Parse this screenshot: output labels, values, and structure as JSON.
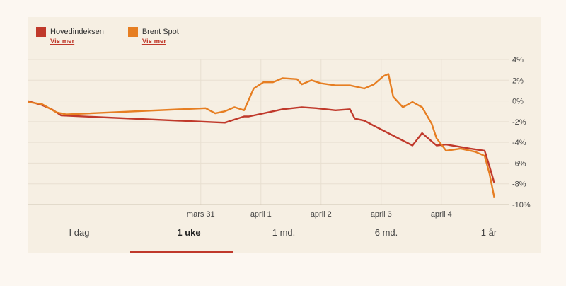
{
  "legend": {
    "items": [
      {
        "name": "Hovedindeksen",
        "link": "Vis mer",
        "color": "#c0392b"
      },
      {
        "name": "Brent Spot",
        "link": "Vis mer",
        "color": "#e67e22"
      }
    ]
  },
  "ranges": {
    "items": [
      "I dag",
      "1 uke",
      "1 md.",
      "6 md.",
      "1 år"
    ],
    "selected": 1
  },
  "chart_data": {
    "type": "line",
    "x_ticks": [
      "mars 31",
      "april 1",
      "april 2",
      "april 3",
      "april 4"
    ],
    "y_ticks": [
      "4%",
      "2%",
      "0%",
      "-2%",
      "-4%",
      "-6%",
      "-8%",
      "-10%"
    ],
    "ylim": [
      -10,
      4
    ],
    "xlim": [
      0,
      100
    ],
    "series": [
      {
        "name": "Hovedindeksen",
        "color": "#c0392b",
        "points": [
          [
            0,
            0
          ],
          [
            3,
            -0.4
          ],
          [
            5,
            -0.8
          ],
          [
            7,
            -1.4
          ],
          [
            41,
            -2.1
          ],
          [
            43,
            -1.8
          ],
          [
            45,
            -1.5
          ],
          [
            46,
            -1.5
          ],
          [
            50,
            -1.1
          ],
          [
            53,
            -0.8
          ],
          [
            57,
            -0.6
          ],
          [
            60,
            -0.7
          ],
          [
            64,
            -0.9
          ],
          [
            67,
            -0.8
          ],
          [
            68,
            -1.7
          ],
          [
            70,
            -1.9
          ],
          [
            72,
            -2.4
          ],
          [
            80,
            -4.3
          ],
          [
            82,
            -3.1
          ],
          [
            85,
            -4.3
          ],
          [
            87,
            -4.2
          ],
          [
            92,
            -4.6
          ],
          [
            95,
            -4.8
          ],
          [
            96,
            -6.3
          ],
          [
            97,
            -7.9
          ]
        ]
      },
      {
        "name": "Brent Spot",
        "color": "#e67e22",
        "points": [
          [
            0,
            -0.1
          ],
          [
            3,
            -0.3
          ],
          [
            6,
            -1.1
          ],
          [
            8,
            -1.3
          ],
          [
            37,
            -0.7
          ],
          [
            39,
            -1.2
          ],
          [
            41,
            -1.0
          ],
          [
            43,
            -0.6
          ],
          [
            45,
            -0.9
          ],
          [
            47,
            1.2
          ],
          [
            49,
            1.8
          ],
          [
            51,
            1.8
          ],
          [
            53,
            2.2
          ],
          [
            56,
            2.1
          ],
          [
            57,
            1.6
          ],
          [
            59,
            2.0
          ],
          [
            61,
            1.7
          ],
          [
            64,
            1.5
          ],
          [
            67,
            1.5
          ],
          [
            70,
            1.2
          ],
          [
            72,
            1.6
          ],
          [
            74,
            2.4
          ],
          [
            75,
            2.6
          ],
          [
            76,
            0.4
          ],
          [
            78,
            -0.6
          ],
          [
            80,
            -0.1
          ],
          [
            82,
            -0.6
          ],
          [
            84,
            -2.2
          ],
          [
            85,
            -3.6
          ],
          [
            87,
            -4.8
          ],
          [
            90,
            -4.6
          ],
          [
            93,
            -4.9
          ],
          [
            95,
            -5.3
          ],
          [
            96,
            -7.0
          ],
          [
            97,
            -9.3
          ]
        ]
      }
    ]
  }
}
